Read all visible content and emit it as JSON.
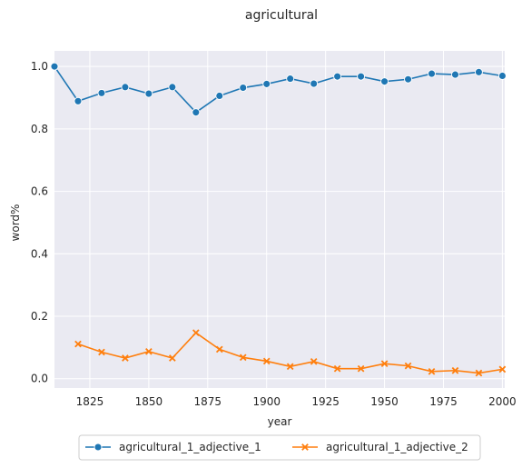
{
  "chart_data": {
    "type": "line",
    "title": "agricultural",
    "xlabel": "year",
    "ylabel": "word%",
    "xlim": [
      1810,
      2001
    ],
    "ylim": [
      -0.03,
      1.05
    ],
    "xticks": [
      1825,
      1850,
      1875,
      1900,
      1925,
      1950,
      1975,
      2000
    ],
    "yticks": [
      0.0,
      0.2,
      0.4,
      0.6,
      0.8,
      1.0
    ],
    "grid": true,
    "legend_position": "bottom-center",
    "series": [
      {
        "name": "agricultural_1_adjective_1",
        "color": "#1f77b4",
        "marker": "circle",
        "x": [
          1810,
          1820,
          1830,
          1840,
          1850,
          1860,
          1870,
          1880,
          1890,
          1900,
          1910,
          1920,
          1930,
          1940,
          1950,
          1960,
          1970,
          1980,
          1990,
          2000
        ],
        "y": [
          1.0,
          0.889,
          0.915,
          0.934,
          0.913,
          0.934,
          0.853,
          0.906,
          0.932,
          0.944,
          0.961,
          0.945,
          0.968,
          0.968,
          0.952,
          0.959,
          0.977,
          0.974,
          0.982,
          0.97
        ]
      },
      {
        "name": "agricultural_1_adjective_2",
        "color": "#ff7f0e",
        "marker": "x",
        "x": [
          1820,
          1830,
          1840,
          1850,
          1860,
          1870,
          1880,
          1890,
          1900,
          1910,
          1920,
          1930,
          1940,
          1950,
          1960,
          1970,
          1980,
          1990,
          2000
        ],
        "y": [
          0.111,
          0.085,
          0.066,
          0.087,
          0.066,
          0.147,
          0.094,
          0.068,
          0.056,
          0.039,
          0.055,
          0.032,
          0.032,
          0.048,
          0.041,
          0.023,
          0.026,
          0.018,
          0.03
        ]
      }
    ]
  }
}
